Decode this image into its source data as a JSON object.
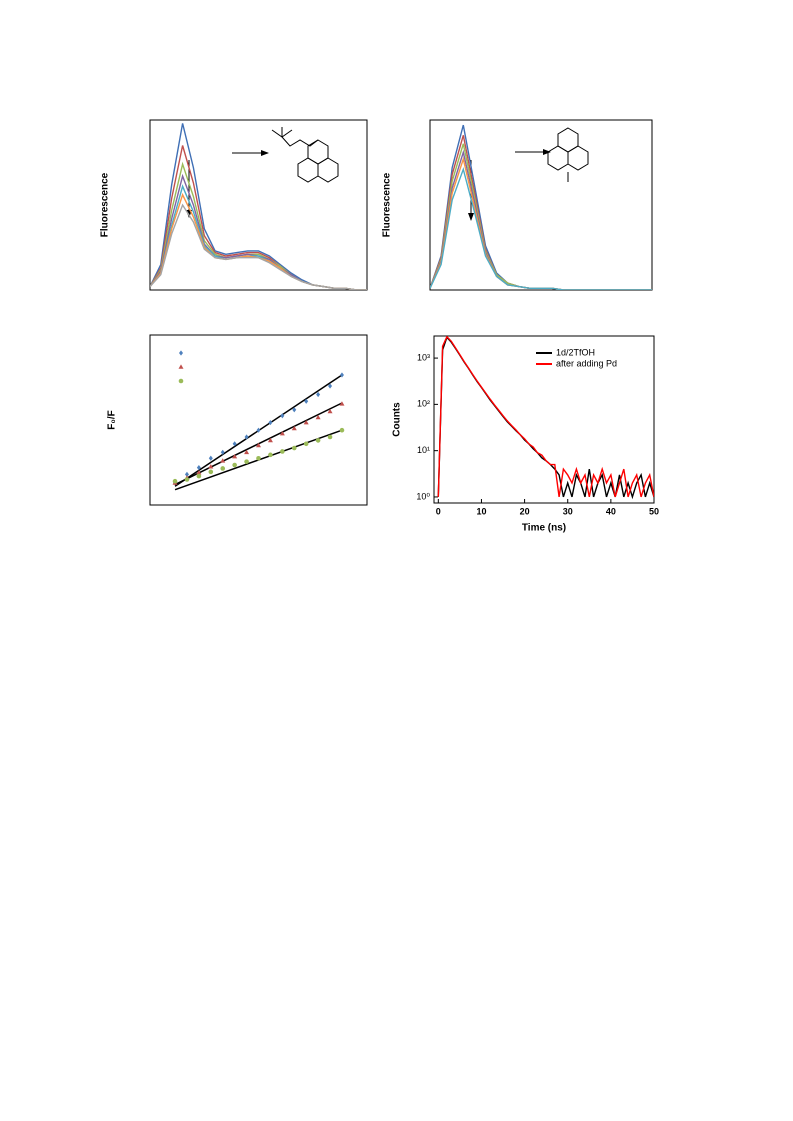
{
  "chart_data": [
    {
      "type": "line",
      "y_label": "Fluorescence",
      "x": [
        0,
        1,
        2,
        3,
        4,
        5,
        6,
        7,
        8,
        9,
        10,
        11,
        12,
        13,
        14,
        15,
        16,
        17,
        18,
        19,
        20
      ],
      "xlim": [
        0,
        20
      ],
      "ylim": [
        0,
        1
      ],
      "series": [
        {
          "color": "#3f6fb5",
          "values": [
            0.02,
            0.15,
            0.62,
            0.98,
            0.72,
            0.36,
            0.23,
            0.21,
            0.22,
            0.23,
            0.23,
            0.2,
            0.15,
            0.1,
            0.06,
            0.03,
            0.02,
            0.01,
            0.01,
            0.0,
            0.0
          ]
        },
        {
          "color": "#c0504d",
          "values": [
            0.02,
            0.13,
            0.54,
            0.85,
            0.63,
            0.32,
            0.22,
            0.2,
            0.21,
            0.22,
            0.22,
            0.19,
            0.14,
            0.09,
            0.05,
            0.03,
            0.02,
            0.01,
            0.01,
            0.0,
            0.0
          ]
        },
        {
          "color": "#9bbb59",
          "values": [
            0.02,
            0.12,
            0.47,
            0.74,
            0.55,
            0.29,
            0.21,
            0.19,
            0.2,
            0.21,
            0.21,
            0.18,
            0.14,
            0.09,
            0.05,
            0.03,
            0.02,
            0.01,
            0.01,
            0.0,
            0.0
          ]
        },
        {
          "color": "#8064a2",
          "values": [
            0.02,
            0.11,
            0.42,
            0.67,
            0.5,
            0.27,
            0.2,
            0.19,
            0.2,
            0.21,
            0.2,
            0.18,
            0.13,
            0.09,
            0.05,
            0.03,
            0.02,
            0.01,
            0.01,
            0.0,
            0.0
          ]
        },
        {
          "color": "#4bacc6",
          "values": [
            0.02,
            0.1,
            0.38,
            0.61,
            0.46,
            0.26,
            0.2,
            0.18,
            0.19,
            0.2,
            0.2,
            0.17,
            0.13,
            0.08,
            0.05,
            0.03,
            0.02,
            0.01,
            0.01,
            0.0,
            0.0
          ]
        },
        {
          "color": "#f79646",
          "values": [
            0.02,
            0.1,
            0.36,
            0.56,
            0.43,
            0.25,
            0.19,
            0.18,
            0.19,
            0.2,
            0.19,
            0.17,
            0.13,
            0.08,
            0.05,
            0.03,
            0.02,
            0.01,
            0.01,
            0.0,
            0.0
          ]
        },
        {
          "color": "#a5a5a5",
          "values": [
            0.02,
            0.09,
            0.33,
            0.5,
            0.4,
            0.24,
            0.19,
            0.18,
            0.19,
            0.19,
            0.19,
            0.16,
            0.12,
            0.08,
            0.05,
            0.03,
            0.02,
            0.01,
            0.01,
            0.0,
            0.0
          ]
        }
      ]
    },
    {
      "type": "line",
      "y_label": "Fluorescence",
      "x": [
        0,
        1,
        2,
        3,
        4,
        5,
        6,
        7,
        8,
        9,
        10,
        11,
        12,
        13,
        14,
        15,
        16,
        17,
        18,
        19,
        20
      ],
      "xlim": [
        0,
        20
      ],
      "ylim": [
        0,
        1
      ],
      "series": [
        {
          "color": "#3f6fb5",
          "values": [
            0.01,
            0.2,
            0.72,
            0.97,
            0.62,
            0.26,
            0.1,
            0.04,
            0.02,
            0.01,
            0.01,
            0.01,
            0.0,
            0.0,
            0.0,
            0.0,
            0.0,
            0.0,
            0.0,
            0.0,
            0.0
          ]
        },
        {
          "color": "#c0504d",
          "values": [
            0.01,
            0.19,
            0.68,
            0.91,
            0.58,
            0.24,
            0.09,
            0.04,
            0.02,
            0.01,
            0.01,
            0.01,
            0.0,
            0.0,
            0.0,
            0.0,
            0.0,
            0.0,
            0.0,
            0.0,
            0.0
          ]
        },
        {
          "color": "#9bbb59",
          "values": [
            0.01,
            0.18,
            0.64,
            0.86,
            0.55,
            0.23,
            0.09,
            0.04,
            0.02,
            0.01,
            0.01,
            0.01,
            0.0,
            0.0,
            0.0,
            0.0,
            0.0,
            0.0,
            0.0,
            0.0,
            0.0
          ]
        },
        {
          "color": "#8064a2",
          "values": [
            0.01,
            0.17,
            0.6,
            0.81,
            0.52,
            0.22,
            0.08,
            0.03,
            0.02,
            0.01,
            0.01,
            0.01,
            0.0,
            0.0,
            0.0,
            0.0,
            0.0,
            0.0,
            0.0,
            0.0,
            0.0
          ]
        },
        {
          "color": "#f79646",
          "values": [
            0.01,
            0.16,
            0.57,
            0.77,
            0.49,
            0.21,
            0.08,
            0.03,
            0.02,
            0.01,
            0.01,
            0.01,
            0.0,
            0.0,
            0.0,
            0.0,
            0.0,
            0.0,
            0.0,
            0.0,
            0.0
          ]
        },
        {
          "color": "#4bacc6",
          "values": [
            0.01,
            0.15,
            0.53,
            0.71,
            0.46,
            0.2,
            0.08,
            0.03,
            0.02,
            0.01,
            0.01,
            0.01,
            0.0,
            0.0,
            0.0,
            0.0,
            0.0,
            0.0,
            0.0,
            0.0,
            0.0
          ]
        }
      ]
    },
    {
      "type": "scatter",
      "y_label": "F₀/F",
      "x": [
        0,
        1,
        2,
        3,
        4,
        5,
        6,
        7,
        8,
        9,
        10,
        11,
        12,
        13,
        14
      ],
      "xlim": [
        -2.1,
        16.1
      ],
      "ylim": [
        1,
        3
      ],
      "series": [
        {
          "color": "#4f81bd",
          "marker": "diamond",
          "values": [
            1.26,
            1.36,
            1.44,
            1.55,
            1.62,
            1.72,
            1.8,
            1.88,
            1.97,
            2.05,
            2.12,
            2.22,
            2.3,
            2.4,
            2.53
          ],
          "fit": {
            "x": [
              0,
              14
            ],
            "values": [
              1.22,
              2.53
            ]
          }
        },
        {
          "color": "#c0504d",
          "marker": "triangle",
          "values": [
            1.26,
            1.32,
            1.38,
            1.45,
            1.52,
            1.57,
            1.62,
            1.7,
            1.76,
            1.84,
            1.9,
            1.97,
            2.03,
            2.1,
            2.19
          ],
          "fit": {
            "x": [
              0,
              14
            ],
            "values": [
              1.24,
              2.2
            ]
          }
        },
        {
          "color": "#9bbb59",
          "marker": "circle",
          "values": [
            1.28,
            1.3,
            1.34,
            1.39,
            1.43,
            1.47,
            1.51,
            1.55,
            1.59,
            1.63,
            1.67,
            1.72,
            1.76,
            1.8,
            1.88
          ],
          "fit": {
            "x": [
              0,
              14
            ],
            "values": [
              1.18,
              1.88
            ]
          }
        }
      ]
    },
    {
      "type": "line",
      "x_label": "Time (ns)",
      "y_label": "Counts",
      "log_y": true,
      "x": [
        0,
        1,
        2,
        3,
        4,
        5,
        6,
        7,
        8,
        9,
        10,
        11,
        12,
        13,
        14,
        15,
        16,
        17,
        18,
        19,
        20,
        21,
        22,
        23,
        24,
        25,
        26,
        27,
        28,
        29,
        30,
        31,
        32,
        33,
        34,
        35,
        36,
        37,
        38,
        39,
        40,
        41,
        42,
        43,
        44,
        45,
        46,
        47,
        48,
        49,
        50
      ],
      "xlim": [
        -1,
        50
      ],
      "xticks": [
        0,
        10,
        20,
        30,
        40,
        50
      ],
      "ylim": [
        0.74,
        3000
      ],
      "yticks": [
        {
          "value": 1,
          "label": "10⁰"
        },
        {
          "value": 10,
          "label": "10¹"
        },
        {
          "value": 100,
          "label": "10²"
        },
        {
          "value": 1000,
          "label": "10³"
        }
      ],
      "series": [
        {
          "name": "1d/2TfOH",
          "color": "#000000",
          "values": [
            1,
            1500,
            2800,
            2200,
            1600,
            1150,
            820,
            600,
            430,
            310,
            230,
            170,
            125,
            95,
            72,
            55,
            42,
            34,
            27,
            22,
            17,
            14,
            11,
            9,
            7,
            6,
            5,
            4,
            3,
            1,
            2,
            1,
            3,
            2,
            1,
            4,
            1,
            2,
            3,
            1,
            2,
            1,
            3,
            1,
            2,
            1,
            2,
            3,
            1,
            2,
            1
          ]
        },
        {
          "name": "after adding Pd",
          "color": "#ff0000",
          "values": [
            1,
            1800,
            2900,
            2300,
            1650,
            1180,
            840,
            610,
            440,
            320,
            235,
            175,
            130,
            98,
            75,
            57,
            44,
            35,
            28,
            22,
            18,
            14,
            12,
            9,
            8,
            6,
            5,
            5,
            1,
            4,
            3,
            2,
            4,
            2,
            3,
            1,
            3,
            2,
            4,
            2,
            3,
            1,
            2,
            4,
            1,
            2,
            3,
            1,
            2,
            3,
            1
          ]
        }
      ]
    }
  ]
}
